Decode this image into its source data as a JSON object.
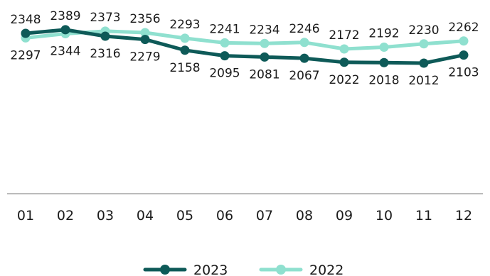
{
  "chart_data": {
    "type": "line",
    "categories": [
      "01",
      "02",
      "03",
      "04",
      "05",
      "06",
      "07",
      "08",
      "09",
      "10",
      "11",
      "12"
    ],
    "series": [
      {
        "name": "2023",
        "color": "#0e5a58",
        "values": [
          2348,
          2389,
          2316,
          2279,
          2158,
          2095,
          2081,
          2067,
          2022,
          2018,
          2012,
          2103
        ]
      },
      {
        "name": "2022",
        "color": "#8fe0cf",
        "values": [
          2297,
          2344,
          2373,
          2356,
          2293,
          2241,
          2234,
          2246,
          2172,
          2192,
          2230,
          2262
        ]
      }
    ],
    "title": "",
    "xlabel": "",
    "ylabel": "",
    "grid": false,
    "legend": "bottom-center",
    "data_labels": true
  }
}
